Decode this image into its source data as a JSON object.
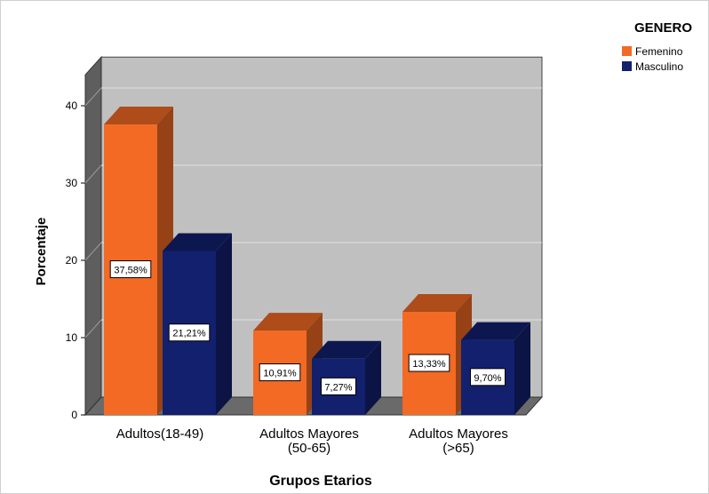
{
  "chart_data": {
    "type": "bar",
    "style": "3d-clustered",
    "categories": [
      "Adultos(18-49)",
      "Adultos Mayores\n(50-65)",
      "Adultos Mayores\n(>65)"
    ],
    "series": [
      {
        "name": "Femenino",
        "color": "#f26a24",
        "values": [
          37.58,
          10.91,
          13.33
        ]
      },
      {
        "name": "Masculino",
        "color": "#12206e",
        "values": [
          21.21,
          7.27,
          9.7
        ]
      }
    ],
    "data_labels": [
      [
        "37,58%",
        "10,91%",
        "13,33%"
      ],
      [
        "21,21%",
        "7,27%",
        "9,70%"
      ]
    ],
    "xlabel": "Grupos Etarios",
    "ylabel": "Porcentaje",
    "ylim": [
      0,
      44
    ],
    "yticks": [
      0,
      10,
      20,
      30,
      40
    ],
    "grid": true,
    "legend_title": "GENERO",
    "legend_position": "top-right",
    "wall_color": "#c0c0c0"
  }
}
